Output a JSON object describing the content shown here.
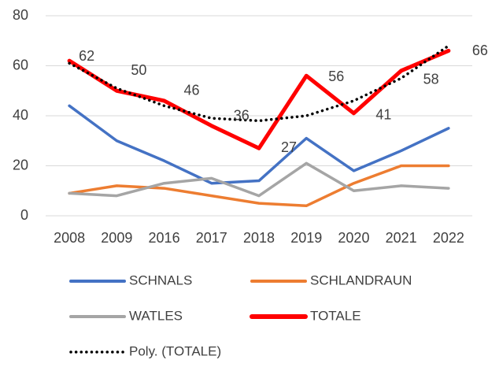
{
  "chart_data": {
    "type": "line",
    "categories": [
      "2008",
      "2009",
      "2016",
      "2017",
      "2018",
      "2019",
      "2020",
      "2021",
      "2022"
    ],
    "series": [
      {
        "name": "SCHNALS",
        "color": "#4472c4",
        "values": [
          44,
          30,
          22,
          13,
          14,
          31,
          18,
          26,
          35
        ]
      },
      {
        "name": "SCHLANDRAUN",
        "color": "#ed7d31",
        "values": [
          9,
          12,
          11,
          8,
          5,
          4,
          13,
          20,
          20
        ]
      },
      {
        "name": "WATLES",
        "color": "#a5a5a5",
        "values": [
          9,
          8,
          13,
          15,
          8,
          21,
          10,
          12,
          11
        ]
      },
      {
        "name": "TOTALE",
        "color": "#ff0000",
        "values": [
          62,
          50,
          46,
          36,
          27,
          56,
          41,
          58,
          66
        ],
        "data_labels": true
      },
      {
        "name": "Poly. (TOTALE)",
        "color": "#000000",
        "dotted": true,
        "values": [
          61,
          51,
          44,
          39,
          38,
          40,
          46,
          55,
          68
        ]
      }
    ],
    "ylim": [
      0,
      80
    ],
    "yticks": [
      0,
      20,
      40,
      60,
      80
    ],
    "grid": true
  }
}
